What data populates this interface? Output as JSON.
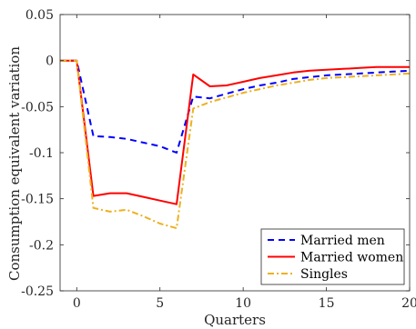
{
  "chart_data": {
    "type": "line",
    "title": "",
    "xlabel": "Quarters",
    "ylabel": "Consumption equivalent variation",
    "xlim": [
      -1,
      20
    ],
    "ylim": [
      -0.25,
      0.05
    ],
    "xticks": [
      0,
      5,
      10,
      15,
      20
    ],
    "xtick_labels": [
      "0",
      "5",
      "10",
      "15",
      "20"
    ],
    "yticks": [
      0.05,
      0,
      -0.05,
      -0.1,
      -0.15,
      -0.2,
      -0.25
    ],
    "ytick_labels": [
      "0.05",
      "0",
      "-0.05",
      "-0.1",
      "-0.15",
      "-0.2",
      "-0.25"
    ],
    "grid": false,
    "legend_position": "bottom-right",
    "x": [
      -1,
      0,
      1,
      2,
      3,
      4,
      5,
      6,
      7,
      8,
      9,
      10,
      11,
      12,
      13,
      14,
      15,
      16,
      17,
      18,
      19,
      20
    ],
    "series": [
      {
        "name": "Married men",
        "color": "#0000ff",
        "style": "dashed",
        "values": [
          0,
          0,
          -0.082,
          -0.083,
          -0.085,
          -0.089,
          -0.093,
          -0.1,
          -0.039,
          -0.041,
          -0.036,
          -0.031,
          -0.027,
          -0.024,
          -0.02,
          -0.018,
          -0.016,
          -0.015,
          -0.014,
          -0.013,
          -0.012,
          -0.011
        ]
      },
      {
        "name": "Married women",
        "color": "#ff0000",
        "style": "solid",
        "values": [
          0,
          0,
          -0.147,
          -0.144,
          -0.144,
          -0.148,
          -0.152,
          -0.156,
          -0.015,
          -0.028,
          -0.027,
          -0.023,
          -0.019,
          -0.016,
          -0.013,
          -0.011,
          -0.01,
          -0.009,
          -0.008,
          -0.007,
          -0.007,
          -0.007
        ]
      },
      {
        "name": "Singles",
        "color": "#edb120",
        "style": "dashdot",
        "values": [
          0,
          0,
          -0.16,
          -0.164,
          -0.162,
          -0.169,
          -0.177,
          -0.182,
          -0.052,
          -0.045,
          -0.04,
          -0.035,
          -0.031,
          -0.027,
          -0.024,
          -0.021,
          -0.019,
          -0.018,
          -0.017,
          -0.016,
          -0.015,
          -0.014
        ]
      }
    ]
  }
}
